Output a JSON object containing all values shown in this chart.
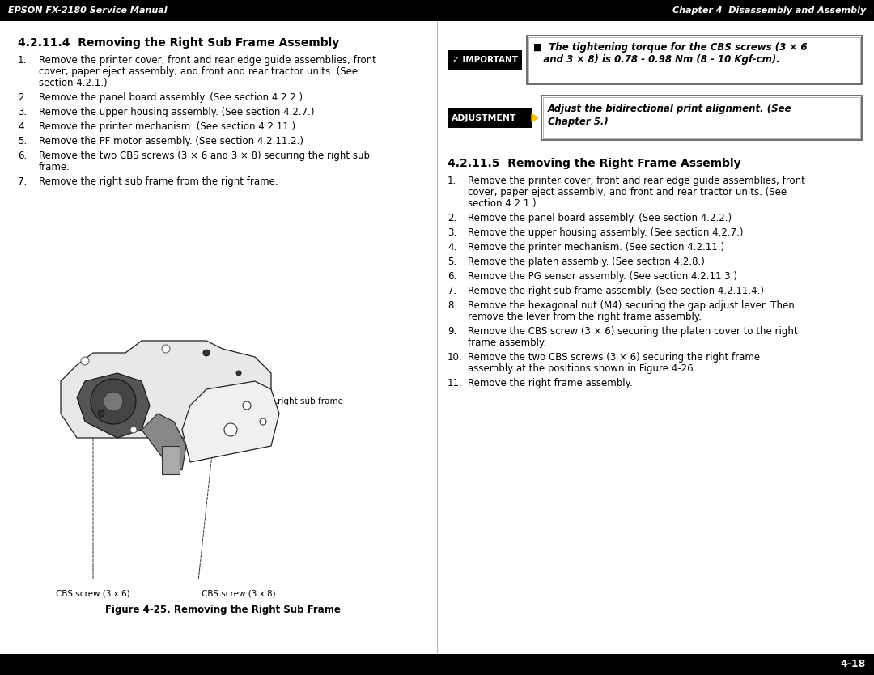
{
  "header_left": "EPSON FX-2180 Service Manual",
  "header_right": "Chapter 4  Disassembly and Assembly",
  "footer_text": "4-18",
  "header_bg": "#000000",
  "header_fg": "#ffffff",
  "footer_bg": "#000000",
  "footer_fg": "#ffffff",
  "left_section_title": "4.2.11.4  Removing the Right Sub Frame Assembly",
  "left_items": [
    [
      "1.",
      "Remove the printer cover, front and rear edge guide assemblies, front\ncover, paper eject assembly, and front and rear tractor units. (See\nsection 4.2.1.)"
    ],
    [
      "2.",
      "Remove the panel board assembly. (See section 4.2.2.)"
    ],
    [
      "3.",
      "Remove the upper housing assembly. (See section 4.2.7.)"
    ],
    [
      "4.",
      "Remove the printer mechanism. (See section 4.2.11.)"
    ],
    [
      "5.",
      "Remove the PF motor assembly. (See section 4.2.11.2.)"
    ],
    [
      "6.",
      "Remove the two CBS screws (3 × 6 and 3 × 8) securing the right sub\nframe."
    ],
    [
      "7.",
      "Remove the right sub frame from the right frame."
    ]
  ],
  "fig_caption": "Figure 4-25. Removing the Right Sub Frame",
  "cbs_left_label": "CBS screw (3 x 6)",
  "cbs_right_label": "CBS screw (3 x 8)",
  "right_sub_frame_label": "right sub frame",
  "important_label": "✓ IMPORTANT",
  "important_line1": "■  The tightening torque for the CBS screws (3 × 6",
  "important_line2": "   and 3 × 8) is 0.78 - 0.98 Nm (8 - 10 Kgf-cm).",
  "adjustment_label": "ADJUSTMENT",
  "adjustment_line1": "Adjust the bidirectional print alignment. (See",
  "adjustment_line2": "Chapter 5.)",
  "right_section_title": "4.2.11.5  Removing the Right Frame Assembly",
  "right_items": [
    [
      "1.",
      "Remove the printer cover, front and rear edge guide assemblies, front\ncover, paper eject assembly, and front and rear tractor units. (See\nsection 4.2.1.)"
    ],
    [
      "2.",
      "Remove the panel board assembly. (See section 4.2.2.)"
    ],
    [
      "3.",
      "Remove the upper housing assembly. (See section 4.2.7.)"
    ],
    [
      "4.",
      "Remove the printer mechanism. (See section 4.2.11.)"
    ],
    [
      "5.",
      "Remove the platen assembly. (See section 4.2.8.)"
    ],
    [
      "6.",
      "Remove the PG sensor assembly. (See section 4.2.11.3.)"
    ],
    [
      "7.",
      "Remove the right sub frame assembly. (See section 4.2.11.4.)"
    ],
    [
      "8.",
      "Remove the hexagonal nut (M4) securing the gap adjust lever. Then\nremove the lever from the right frame assembly."
    ],
    [
      "9.",
      "Remove the CBS screw (3 × 6) securing the platen cover to the right\nframe assembly."
    ],
    [
      "10.",
      "Remove the two CBS screws (3 × 6) securing the right frame\nassembly at the positions shown in Figure 4-26."
    ],
    [
      "11.",
      "Remove the right frame assembly."
    ]
  ]
}
